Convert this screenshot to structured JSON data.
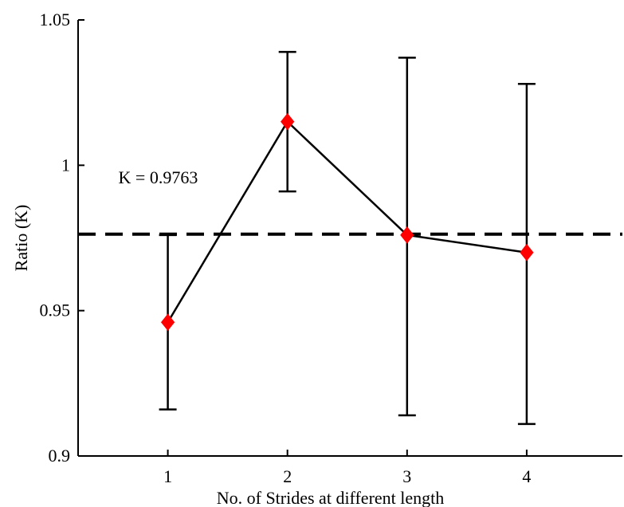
{
  "chart_data": {
    "type": "line",
    "xlabel": "No. of Strides at different length",
    "ylabel": "Ratio (K)",
    "xlim": [
      0.25,
      4.8
    ],
    "ylim": [
      0.9,
      1.05
    ],
    "x_ticks": [
      1,
      2,
      3,
      4
    ],
    "y_ticks": [
      0.9,
      0.95,
      1,
      1.05
    ],
    "y_tick_labels": [
      "0.9",
      "0.95",
      "1",
      "1.05"
    ],
    "grid": false,
    "legend": "none",
    "series": [
      {
        "x": [
          1,
          2,
          3,
          4
        ],
        "values": [
          0.946,
          1.015,
          0.976,
          0.97
        ],
        "error_lower": [
          0.916,
          0.991,
          0.914,
          0.911
        ],
        "error_upper": [
          0.976,
          1.039,
          1.037,
          1.028
        ],
        "line_color": "#000000",
        "marker": "diamond",
        "marker_color": "#ff0000"
      }
    ],
    "reference_line": {
      "y": 0.9763,
      "style": "dashed",
      "color": "#000000"
    },
    "annotations": [
      {
        "text": "K = 0.9763",
        "x": 0.6,
        "y": 0.996
      }
    ]
  }
}
